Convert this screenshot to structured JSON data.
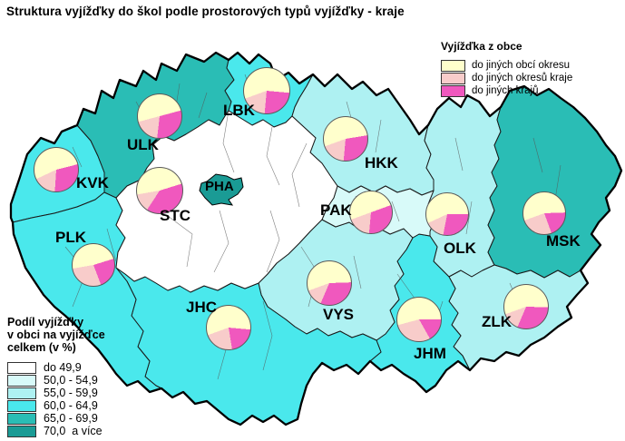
{
  "title": "Struktura vyjížďky do škol podle prostorových typů vyjížďky - kraje",
  "legend_pie": {
    "title": "Vyjížďka z obce",
    "items": [
      {
        "label": "do jiných obcí okresu",
        "color": "#FFFFCC"
      },
      {
        "label": "do jiných okresů kraje",
        "color": "#F8CCCA"
      },
      {
        "label": "do jiných krajů",
        "color": "#F058BE"
      }
    ]
  },
  "legend_choropleth": {
    "title_lines": [
      "Podíl vyjížďky",
      "v obci na vyjížďce",
      "celkem (v %)"
    ],
    "classes": [
      {
        "label": "do 49,9",
        "color": "#FFFFFF"
      },
      {
        "label": "50,0 - 54,9",
        "color": "#D8FAF9"
      },
      {
        "label": "55,0 - 59,9",
        "color": "#AEF1F2"
      },
      {
        "label": "60,0 - 64,9",
        "color": "#4AE8EC"
      },
      {
        "label": "65,0 - 69,9",
        "color": "#2ABDB5"
      },
      {
        "label": "70,0  a více",
        "color": "#1A9B95"
      }
    ]
  },
  "chart_data": {
    "type": "pie",
    "slice_order": [
      "do jiných obcí okresu",
      "do jiných okresů kraje",
      "do jiných krajů"
    ],
    "units": "%",
    "regions": [
      {
        "code": "KVK",
        "share_class": "60,0 - 64,9",
        "slices": [
          53,
          17,
          30
        ]
      },
      {
        "code": "ULK",
        "share_class": "65,0 - 69,9",
        "slices": [
          50,
          19,
          31
        ]
      },
      {
        "code": "LBK",
        "share_class": "60,0 - 64,9",
        "slices": [
          57,
          18,
          25
        ]
      },
      {
        "code": "STC",
        "share_class": "do 49,9",
        "slices": [
          48,
          13,
          39
        ]
      },
      {
        "code": "PHA",
        "share_class": "70,0  a více",
        "slices": null
      },
      {
        "code": "PLK",
        "share_class": "60,0 - 64,9",
        "slices": [
          48,
          28,
          24
        ]
      },
      {
        "code": "JHC",
        "share_class": "60,0 - 64,9",
        "slices": [
          57,
          22,
          21
        ]
      },
      {
        "code": "HKK",
        "share_class": "55,0 - 59,9",
        "slices": [
          53,
          18,
          29
        ]
      },
      {
        "code": "PAK",
        "share_class": "50,0 - 54,9",
        "slices": [
          50,
          18,
          32
        ]
      },
      {
        "code": "VYS",
        "share_class": "55,0 - 59,9",
        "slices": [
          55,
          13,
          32
        ]
      },
      {
        "code": "JHM",
        "share_class": "60,0 - 64,9",
        "slices": [
          54,
          29,
          17
        ]
      },
      {
        "code": "OLK",
        "share_class": "55,0 - 59,9",
        "slices": [
          57,
          15,
          28
        ]
      },
      {
        "code": "ZLK",
        "share_class": "55,0 - 59,9",
        "slices": [
          56,
          13,
          31
        ]
      },
      {
        "code": "MSK",
        "share_class": "65,0 - 69,9",
        "slices": [
          55,
          25,
          20
        ]
      }
    ]
  }
}
